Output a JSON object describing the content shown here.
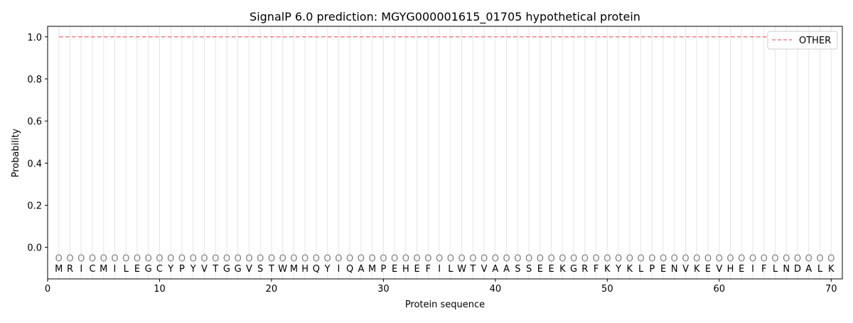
{
  "chart_data": {
    "type": "line",
    "title": "SignalP 6.0 prediction: MGYG000001615_01705 hypothetical protein",
    "xlabel": "Protein sequence",
    "ylabel": "Probability",
    "xlim": [
      0,
      71
    ],
    "ylim": [
      -0.15,
      1.05
    ],
    "xticks": [
      0,
      10,
      20,
      30,
      40,
      50,
      60,
      70
    ],
    "yticks": [
      "0.0",
      "0.2",
      "0.4",
      "0.6",
      "0.8",
      "1.0"
    ],
    "grid": "vertical per residue",
    "legend_position": "top-right",
    "sequence": [
      "M",
      "R",
      "I",
      "C",
      "M",
      "I",
      "L",
      "E",
      "G",
      "C",
      "Y",
      "P",
      "Y",
      "V",
      "T",
      "G",
      "G",
      "V",
      "S",
      "T",
      "W",
      "M",
      "H",
      "Q",
      "Y",
      "I",
      "Q",
      "A",
      "M",
      "P",
      "E",
      "H",
      "E",
      "F",
      "I",
      "L",
      "W",
      "T",
      "V",
      "A",
      "A",
      "S",
      "S",
      "E",
      "E",
      "K",
      "G",
      "R",
      "F",
      "K",
      "Y",
      "K",
      "L",
      "P",
      "E",
      "N",
      "V",
      "K",
      "E",
      "V",
      "H",
      "E",
      "I",
      "F",
      "L",
      "N",
      "D",
      "A",
      "L",
      "K"
    ],
    "predicted_labels": "OOOOOOOOOOOOOOOOOOOOOOOOOOOOOOOOOOOOOOOOOOOOOOOOOOOOOOOOOOOOOOOOOOOOOO",
    "series": [
      {
        "name": "OTHER",
        "color": "#f08080",
        "style": "dashed",
        "x_range": [
          1,
          70
        ],
        "value": 1.0
      }
    ]
  }
}
